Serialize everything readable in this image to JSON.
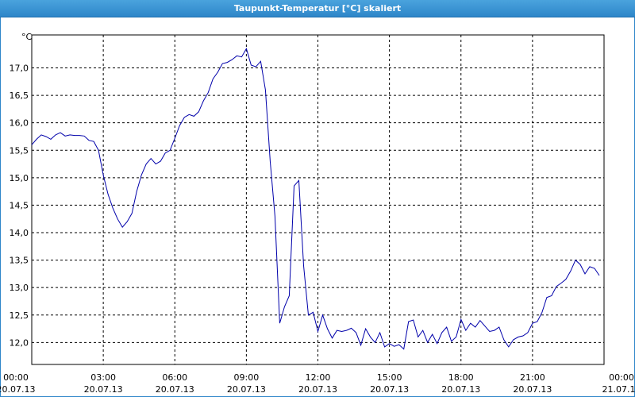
{
  "window": {
    "title": "Taupunkt-Temperatur [°C] skaliert"
  },
  "chart_data": {
    "type": "line",
    "title": "Taupunkt-Temperatur [°C] skaliert",
    "ylabel": "°C",
    "ylim": [
      11.6,
      17.6
    ],
    "xlim": [
      "2013-07-20 00:00",
      "2013-07-21 00:00"
    ],
    "grid": true,
    "line_color": "#0000aa",
    "y_ticks": [
      "12,0",
      "12,5",
      "13,0",
      "13,5",
      "14,0",
      "14,5",
      "15,0",
      "15,5",
      "16,0",
      "16,5",
      "17,0"
    ],
    "y_tick_values": [
      12.0,
      12.5,
      13.0,
      13.5,
      14.0,
      14.5,
      15.0,
      15.5,
      16.0,
      16.5,
      17.0
    ],
    "x_ticks": [
      {
        "time": "00:00",
        "date": "20.07.13"
      },
      {
        "time": "03:00",
        "date": "20.07.13"
      },
      {
        "time": "06:00",
        "date": "20.07.13"
      },
      {
        "time": "09:00",
        "date": "20.07.13"
      },
      {
        "time": "12:00",
        "date": "20.07.13"
      },
      {
        "time": "15:00",
        "date": "20.07.13"
      },
      {
        "time": "18:00",
        "date": "20.07.13"
      },
      {
        "time": "21:00",
        "date": "20.07.13"
      },
      {
        "time": "00:00",
        "date": "21.07.13"
      }
    ],
    "x_tick_hours": [
      0,
      3,
      6,
      9,
      12,
      15,
      18,
      21,
      24
    ],
    "series": [
      {
        "x": [
          0.0,
          0.2,
          0.4,
          0.6,
          0.8,
          1.0,
          1.2,
          1.4,
          1.6,
          1.8,
          2.0,
          2.2,
          2.4,
          2.6,
          2.8,
          3.0,
          3.2,
          3.4,
          3.6,
          3.8,
          4.0,
          4.2,
          4.4,
          4.6,
          4.8,
          5.0,
          5.2,
          5.4,
          5.6,
          5.8,
          6.0,
          6.2,
          6.4,
          6.6,
          6.8,
          7.0,
          7.2,
          7.4,
          7.6,
          7.8,
          8.0,
          8.2,
          8.4,
          8.6,
          8.8,
          9.0,
          9.2,
          9.4,
          9.6,
          9.8,
          10.0,
          10.2,
          10.4,
          10.6,
          10.8,
          11.0,
          11.2,
          11.4,
          11.6,
          11.8,
          12.0,
          12.2,
          12.4,
          12.6,
          12.8,
          13.0,
          13.2,
          13.4,
          13.6,
          13.8,
          14.0,
          14.2,
          14.4,
          14.6,
          14.8,
          15.0,
          15.2,
          15.4,
          15.6,
          15.8,
          16.0,
          16.2,
          16.4,
          16.6,
          16.8,
          17.0,
          17.2,
          17.4,
          17.6,
          17.8,
          18.0,
          18.2,
          18.4,
          18.6,
          18.8,
          19.0,
          19.2,
          19.4,
          19.6,
          19.8,
          20.0,
          20.2,
          20.4,
          20.6,
          20.8,
          21.0,
          21.2,
          21.4,
          21.6,
          21.8,
          22.0,
          22.2,
          22.4,
          22.6,
          22.8,
          23.0,
          23.2,
          23.4,
          23.6,
          23.8
        ],
        "y": [
          15.6,
          15.7,
          15.78,
          15.75,
          15.7,
          15.78,
          15.82,
          15.76,
          15.78,
          15.77,
          15.77,
          15.76,
          15.68,
          15.66,
          15.5,
          15.05,
          14.7,
          14.45,
          14.25,
          14.1,
          14.2,
          14.35,
          14.75,
          15.05,
          15.25,
          15.35,
          15.25,
          15.3,
          15.45,
          15.5,
          15.72,
          15.95,
          16.1,
          16.15,
          16.12,
          16.2,
          16.4,
          16.55,
          16.8,
          16.92,
          17.08,
          17.1,
          17.15,
          17.22,
          17.2,
          17.35,
          17.05,
          17.02,
          17.12,
          16.6,
          15.3,
          14.3,
          12.35,
          12.65,
          12.85,
          14.85,
          14.95,
          13.4,
          12.5,
          12.55,
          12.2,
          12.5,
          12.25,
          12.08,
          12.22,
          12.2,
          12.22,
          12.26,
          12.18,
          11.95,
          12.25,
          12.1,
          12.0,
          12.18,
          11.92,
          11.98,
          11.93,
          11.96,
          11.88,
          12.38,
          12.41,
          12.1,
          12.22,
          12.0,
          12.15,
          11.98,
          12.18,
          12.28,
          12.02,
          12.1,
          12.42,
          12.22,
          12.35,
          12.28,
          12.4,
          12.3,
          12.2,
          12.22,
          12.28,
          12.05,
          11.92,
          12.05,
          12.1,
          12.12,
          12.18,
          12.35,
          12.38,
          12.55,
          12.82,
          12.85,
          13.02,
          13.08,
          13.15,
          13.3,
          13.5,
          13.42,
          13.25,
          13.38,
          13.35,
          13.22
        ]
      }
    ]
  }
}
